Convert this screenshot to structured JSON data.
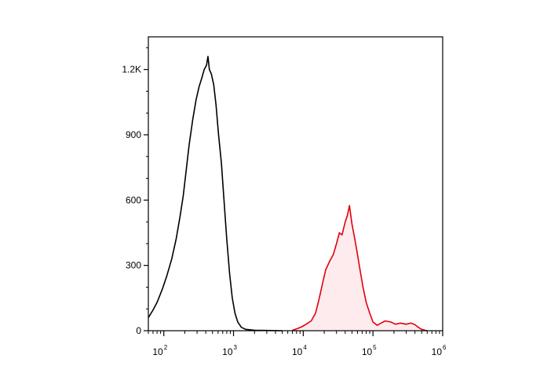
{
  "chart_data": {
    "type": "area",
    "title": "",
    "xlabel": "",
    "ylabel": "",
    "x_scale": "log",
    "xlim": [
      60,
      1000000
    ],
    "ylim": [
      0,
      1350
    ],
    "grid": false,
    "legend": "none",
    "y_ticks": [
      {
        "value": 0,
        "label": "0"
      },
      {
        "value": 300,
        "label": "300"
      },
      {
        "value": 600,
        "label": "600"
      },
      {
        "value": 900,
        "label": "900"
      },
      {
        "value": 1200,
        "label": "1.2K"
      }
    ],
    "x_ticks": [
      {
        "value": 100,
        "base": "10",
        "exp": "2"
      },
      {
        "value": 1000,
        "base": "10",
        "exp": "3"
      },
      {
        "value": 10000,
        "base": "10",
        "exp": "4"
      },
      {
        "value": 100000,
        "base": "10",
        "exp": "5"
      },
      {
        "value": 1000000,
        "base": "10",
        "exp": "6"
      }
    ],
    "series": [
      {
        "color": "#000000",
        "fill": "none",
        "x": [
          60,
          70,
          80,
          95,
          110,
          130,
          150,
          170,
          190,
          210,
          230,
          260,
          290,
          320,
          350,
          380,
          410,
          430,
          450,
          480,
          520,
          560,
          610,
          670,
          730,
          800,
          880,
          960,
          1050,
          1150,
          1300,
          1500,
          2000,
          3000,
          5000
        ],
        "y": [
          60,
          95,
          130,
          190,
          250,
          330,
          420,
          520,
          620,
          740,
          850,
          970,
          1060,
          1120,
          1160,
          1200,
          1220,
          1260,
          1200,
          1180,
          1130,
          1040,
          900,
          770,
          600,
          420,
          260,
          150,
          80,
          40,
          15,
          6,
          2,
          1,
          0
        ]
      },
      {
        "color": "#e0000e",
        "fill": "#fdebee",
        "x": [
          7000,
          8000,
          9500,
          11000,
          13000,
          15000,
          17000,
          19000,
          21000,
          24000,
          27000,
          30000,
          33000,
          36000,
          40000,
          43000,
          46000,
          50000,
          55000,
          60000,
          66000,
          72000,
          80000,
          90000,
          100000,
          115000,
          130000,
          150000,
          180000,
          210000,
          250000,
          300000,
          350000,
          400000,
          450000,
          500000,
          560000,
          600000
        ],
        "y": [
          2,
          8,
          18,
          30,
          45,
          80,
          150,
          220,
          280,
          320,
          350,
          400,
          450,
          440,
          500,
          530,
          575,
          490,
          420,
          350,
          270,
          200,
          130,
          80,
          40,
          25,
          35,
          45,
          40,
          30,
          35,
          30,
          35,
          28,
          15,
          6,
          2,
          0
        ]
      }
    ]
  }
}
